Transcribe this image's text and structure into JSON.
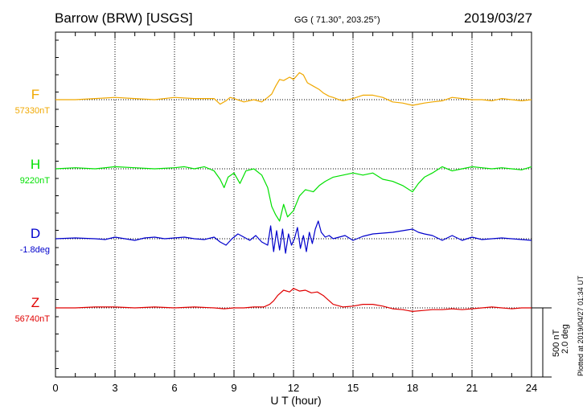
{
  "header": {
    "station": "Barrow (BRW)  [USGS]",
    "coords": "GG ( 71.30°, 203.25°)",
    "date": "2019/03/27"
  },
  "footer": {
    "plotted": "Plotted at 2019/04/27 01:34 UT",
    "scale_nt": "500 nT",
    "scale_deg": "2.0 deg"
  },
  "colors": {
    "F": "#f0a800",
    "H": "#00e000",
    "D": "#0000cc",
    "Z": "#e00000"
  },
  "chart_data": {
    "type": "line",
    "title": "Barrow (BRW)  [USGS]",
    "xlabel": "U T (hour)",
    "xlim": [
      0,
      24
    ],
    "x_ticks": [
      "0",
      "3",
      "6",
      "9",
      "12",
      "15",
      "18",
      "21",
      "24"
    ],
    "grid": true,
    "series": [
      {
        "name": "F",
        "baseline_label": "57330nT",
        "units": "nT",
        "x": [
          0,
          1,
          2,
          3,
          4,
          5,
          6,
          7,
          8,
          8.3,
          8.6,
          8.8,
          9,
          9.5,
          10,
          10.4,
          10.7,
          10.9,
          11.1,
          11.3,
          11.5,
          11.8,
          12,
          12.3,
          12.5,
          12.7,
          13,
          13.3,
          13.5,
          13.8,
          14,
          14.3,
          14.5,
          15,
          15.5,
          16,
          16.5,
          17,
          17.5,
          18,
          18.3,
          18.6,
          19,
          19.5,
          20,
          20.5,
          21,
          21.5,
          22,
          22.5,
          23,
          23.5,
          24
        ],
        "y": [
          0,
          0,
          5,
          10,
          5,
          0,
          10,
          5,
          5,
          -20,
          -5,
          10,
          5,
          -10,
          0,
          -10,
          10,
          25,
          60,
          90,
          85,
          100,
          90,
          120,
          110,
          75,
          60,
          45,
          30,
          15,
          10,
          0,
          -5,
          5,
          20,
          20,
          10,
          -10,
          -15,
          -25,
          -20,
          -15,
          -10,
          -5,
          10,
          5,
          0,
          0,
          -5,
          5,
          0,
          -5,
          0
        ]
      },
      {
        "name": "H",
        "baseline_label": "9220nT",
        "units": "nT",
        "x": [
          0,
          1,
          2,
          3,
          4,
          5,
          6,
          6.5,
          7,
          7.5,
          8,
          8.3,
          8.5,
          8.7,
          9,
          9.3,
          9.6,
          10,
          10.4,
          10.7,
          10.9,
          11.1,
          11.3,
          11.5,
          11.7,
          12,
          12.3,
          12.6,
          13,
          13.3,
          13.6,
          14,
          14.5,
          15,
          15.5,
          16,
          16.5,
          17,
          17.5,
          18,
          18.3,
          18.6,
          19,
          19.5,
          20,
          20.5,
          21,
          21.5,
          22,
          22.5,
          23,
          23.5,
          24
        ],
        "y": [
          0,
          5,
          0,
          10,
          5,
          0,
          5,
          10,
          0,
          10,
          -10,
          -50,
          -90,
          -40,
          -20,
          -70,
          -10,
          0,
          -30,
          -90,
          -180,
          -220,
          -250,
          -170,
          -230,
          -200,
          -130,
          -100,
          -110,
          -80,
          -60,
          -40,
          -30,
          -20,
          -30,
          -20,
          -50,
          -60,
          -80,
          -110,
          -70,
          -40,
          -20,
          10,
          -10,
          0,
          10,
          5,
          0,
          5,
          0,
          -5,
          10
        ]
      },
      {
        "name": "D",
        "baseline_label": "-1.8deg",
        "units": "deg",
        "x": [
          0,
          1,
          2,
          2.5,
          3,
          3.5,
          4,
          4.5,
          5,
          5.5,
          6,
          6.5,
          7,
          7.5,
          8,
          8.3,
          8.6,
          8.9,
          9.2,
          9.5,
          9.8,
          10.1,
          10.4,
          10.7,
          10.85,
          11,
          11.15,
          11.3,
          11.45,
          11.6,
          11.75,
          11.9,
          12.05,
          12.2,
          12.35,
          12.5,
          12.65,
          12.8,
          12.95,
          13.1,
          13.25,
          13.4,
          13.6,
          13.8,
          14,
          14.3,
          14.6,
          15,
          15.5,
          16,
          16.5,
          17,
          17.5,
          18,
          18.3,
          18.6,
          19,
          19.5,
          20,
          20.5,
          21,
          21.5,
          22,
          22.5,
          23,
          23.5,
          24
        ],
        "y": [
          0,
          5,
          0,
          -5,
          10,
          0,
          -10,
          5,
          10,
          0,
          5,
          10,
          0,
          -5,
          10,
          -20,
          -40,
          0,
          30,
          10,
          -10,
          20,
          -20,
          -40,
          80,
          -80,
          50,
          -70,
          60,
          -90,
          30,
          -40,
          0,
          70,
          -60,
          20,
          -80,
          40,
          -30,
          60,
          110,
          40,
          10,
          20,
          0,
          10,
          20,
          -10,
          15,
          30,
          35,
          40,
          50,
          60,
          40,
          30,
          20,
          -10,
          20,
          -10,
          10,
          -5,
          0,
          5,
          0,
          -5,
          -10
        ]
      },
      {
        "name": "Z",
        "baseline_label": "56740nT",
        "units": "nT",
        "x": [
          0,
          1,
          2,
          3,
          4,
          5,
          6,
          7,
          8,
          8.5,
          9,
          9.5,
          10,
          10.5,
          10.8,
          11,
          11.2,
          11.5,
          11.8,
          12,
          12.3,
          12.6,
          12.9,
          13.2,
          13.5,
          13.8,
          14,
          14.5,
          15,
          15.5,
          16,
          16.5,
          17,
          17.5,
          18,
          18.5,
          19,
          19.5,
          20,
          20.5,
          21,
          21.5,
          22,
          22.5,
          23,
          23.5,
          24
        ],
        "y": [
          0,
          0,
          5,
          5,
          0,
          5,
          0,
          5,
          0,
          -5,
          0,
          0,
          5,
          5,
          20,
          40,
          70,
          100,
          90,
          110,
          95,
          100,
          85,
          90,
          70,
          40,
          20,
          5,
          10,
          20,
          20,
          10,
          -5,
          -10,
          -20,
          -15,
          -10,
          -10,
          -5,
          -10,
          -5,
          0,
          5,
          0,
          -5,
          0,
          0
        ]
      }
    ]
  }
}
